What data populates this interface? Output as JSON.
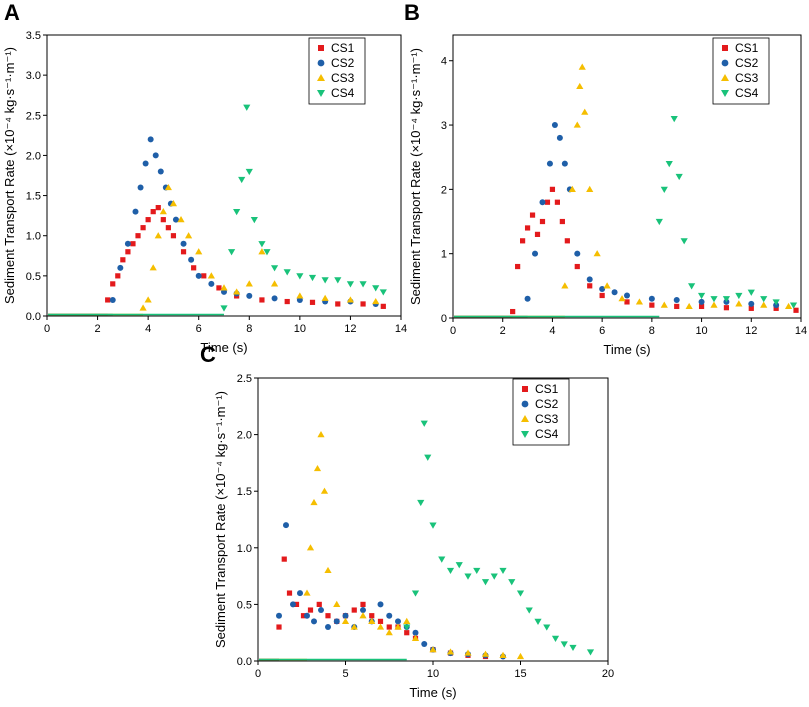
{
  "figure_labels": [
    "A",
    "B",
    "C"
  ],
  "chart_data": [
    {
      "panel": "A",
      "type": "scatter",
      "xlabel": "Time (s)",
      "ylabel": "Sediment Transport Rate (×10⁻⁴ kg·s⁻¹·m⁻¹)",
      "xlim": [
        0,
        14
      ],
      "ylim": [
        0,
        3.5
      ],
      "xticks": [
        0,
        2,
        4,
        6,
        8,
        10,
        12,
        14
      ],
      "xtick_labels": [
        "0",
        "2",
        "4",
        "6",
        "8",
        "10",
        "12",
        "14"
      ],
      "yticks": [
        0,
        0.5,
        1.0,
        1.5,
        2.0,
        2.5,
        3.0,
        3.5
      ],
      "ytick_labels": [
        "0.0",
        "0.5",
        "1.0",
        "1.5",
        "2.0",
        "2.5",
        "3.0",
        "3.5"
      ],
      "legend_position": "top-right",
      "series": [
        {
          "name": "CS1",
          "marker": "square",
          "color": "#e31a1c",
          "x": [
            2.4,
            2.6,
            2.8,
            3.0,
            3.2,
            3.4,
            3.6,
            3.8,
            4.0,
            4.2,
            4.4,
            4.6,
            4.8,
            5.0,
            5.4,
            5.8,
            6.2,
            6.8,
            7.5,
            8.5,
            9.5,
            10.5,
            11.5,
            12.5,
            13.3
          ],
          "y": [
            0.2,
            0.4,
            0.5,
            0.7,
            0.8,
            0.9,
            1.0,
            1.1,
            1.2,
            1.3,
            1.35,
            1.2,
            1.1,
            1.0,
            0.8,
            0.6,
            0.5,
            0.35,
            0.25,
            0.2,
            0.18,
            0.17,
            0.15,
            0.15,
            0.12
          ]
        },
        {
          "name": "CS2",
          "marker": "circle",
          "color": "#1f5fa8",
          "x": [
            2.6,
            2.9,
            3.2,
            3.5,
            3.7,
            3.9,
            4.1,
            4.3,
            4.5,
            4.7,
            4.9,
            5.1,
            5.4,
            5.7,
            6.0,
            6.5,
            7.0,
            7.5,
            8.0,
            9.0,
            10.0,
            11.0,
            12.0,
            13.0
          ],
          "y": [
            0.2,
            0.6,
            0.9,
            1.3,
            1.6,
            1.9,
            2.2,
            2.0,
            1.8,
            1.6,
            1.4,
            1.2,
            0.9,
            0.7,
            0.5,
            0.4,
            0.3,
            0.28,
            0.25,
            0.22,
            0.2,
            0.18,
            0.18,
            0.15
          ]
        },
        {
          "name": "CS3",
          "marker": "triangle-up",
          "color": "#f5be00",
          "x": [
            3.8,
            4.0,
            4.2,
            4.4,
            4.6,
            4.8,
            5.0,
            5.3,
            5.6,
            6.0,
            6.5,
            7.0,
            7.5,
            8.0,
            8.5,
            9.0,
            10.0,
            11.0,
            12.0,
            13.0
          ],
          "y": [
            0.1,
            0.2,
            0.6,
            1.0,
            1.3,
            1.6,
            1.4,
            1.2,
            1.0,
            0.8,
            0.5,
            0.35,
            0.3,
            0.4,
            0.8,
            0.4,
            0.25,
            0.22,
            0.2,
            0.18
          ]
        },
        {
          "name": "CS4",
          "marker": "triangle-down",
          "color": "#19c27a",
          "x": [
            7.0,
            7.3,
            7.5,
            7.7,
            7.9,
            8.0,
            8.2,
            8.5,
            8.7,
            9.0,
            9.5,
            10.0,
            10.5,
            11.0,
            11.5,
            12.0,
            12.5,
            13.0,
            13.3
          ],
          "y": [
            0.1,
            0.8,
            1.3,
            1.7,
            2.6,
            1.8,
            1.2,
            0.9,
            0.8,
            0.6,
            0.55,
            0.5,
            0.48,
            0.45,
            0.45,
            0.4,
            0.4,
            0.35,
            0.3
          ]
        }
      ]
    },
    {
      "panel": "B",
      "type": "scatter",
      "xlabel": "Time (s)",
      "ylabel": "Sediment Transport Rate (×10⁻⁴ kg·s⁻¹·m⁻¹)",
      "xlim": [
        0,
        14
      ],
      "ylim": [
        0,
        4.4
      ],
      "xticks": [
        0,
        2,
        4,
        6,
        8,
        10,
        12,
        14
      ],
      "xtick_labels": [
        "0",
        "2",
        "4",
        "6",
        "8",
        "10",
        "12",
        "14"
      ],
      "yticks": [
        0,
        1,
        2,
        3,
        4
      ],
      "ytick_labels": [
        "0",
        "1",
        "2",
        "3",
        "4"
      ],
      "legend_position": "top-right",
      "series": [
        {
          "name": "CS1",
          "marker": "square",
          "color": "#e31a1c",
          "x": [
            2.4,
            2.6,
            2.8,
            3.0,
            3.2,
            3.4,
            3.6,
            3.8,
            4.0,
            4.2,
            4.4,
            4.6,
            5.0,
            5.5,
            6.0,
            7.0,
            8.0,
            9.0,
            10.0,
            11.0,
            12.0,
            13.0,
            13.8
          ],
          "y": [
            0.1,
            0.8,
            1.2,
            1.4,
            1.6,
            1.3,
            1.5,
            1.8,
            2.0,
            1.8,
            1.5,
            1.2,
            0.8,
            0.5,
            0.35,
            0.25,
            0.2,
            0.18,
            0.18,
            0.16,
            0.15,
            0.15,
            0.12
          ]
        },
        {
          "name": "CS2",
          "marker": "circle",
          "color": "#1f5fa8",
          "x": [
            3.0,
            3.3,
            3.6,
            3.9,
            4.1,
            4.3,
            4.5,
            4.7,
            5.0,
            5.5,
            6.0,
            6.5,
            7.0,
            8.0,
            9.0,
            10.0,
            11.0,
            12.0,
            13.0
          ],
          "y": [
            0.3,
            1.0,
            1.8,
            2.4,
            3.0,
            2.8,
            2.4,
            2.0,
            1.0,
            0.6,
            0.45,
            0.4,
            0.35,
            0.3,
            0.28,
            0.25,
            0.25,
            0.22,
            0.2
          ]
        },
        {
          "name": "CS3",
          "marker": "triangle-up",
          "color": "#f5be00",
          "x": [
            4.5,
            4.8,
            5.0,
            5.1,
            5.2,
            5.3,
            5.5,
            5.8,
            6.2,
            6.8,
            7.5,
            8.5,
            9.5,
            10.5,
            11.5,
            12.5,
            13.5
          ],
          "y": [
            0.5,
            2.0,
            3.0,
            3.6,
            3.9,
            3.2,
            2.0,
            1.0,
            0.5,
            0.3,
            0.25,
            0.2,
            0.18,
            0.2,
            0.22,
            0.2,
            0.18
          ]
        },
        {
          "name": "CS4",
          "marker": "triangle-down",
          "color": "#19c27a",
          "x": [
            8.3,
            8.5,
            8.7,
            8.9,
            9.1,
            9.3,
            9.6,
            10.0,
            10.5,
            11.0,
            11.5,
            12.0,
            12.5,
            13.0,
            13.7
          ],
          "y": [
            1.5,
            2.0,
            2.4,
            3.1,
            2.2,
            1.2,
            0.5,
            0.35,
            0.3,
            0.3,
            0.35,
            0.4,
            0.3,
            0.25,
            0.2
          ]
        }
      ]
    },
    {
      "panel": "C",
      "type": "scatter",
      "xlabel": "Time (s)",
      "ylabel": "Sediment Transport Rate (×10⁻⁴ kg·s⁻¹·m⁻¹)",
      "xlim": [
        0,
        20
      ],
      "ylim": [
        0,
        2.5
      ],
      "xticks": [
        0,
        5,
        10,
        15,
        20
      ],
      "xtick_labels": [
        "0",
        "5",
        "10",
        "15",
        "20"
      ],
      "yticks": [
        0,
        0.5,
        1.0,
        1.5,
        2.0,
        2.5
      ],
      "ytick_labels": [
        "0.0",
        "0.5",
        "1.0",
        "1.5",
        "2.0",
        "2.5"
      ],
      "legend_position": "top-right",
      "series": [
        {
          "name": "CS1",
          "marker": "square",
          "color": "#e31a1c",
          "x": [
            1.2,
            1.5,
            1.8,
            2.2,
            2.6,
            3.0,
            3.5,
            4.0,
            4.5,
            5.0,
            5.5,
            6.0,
            6.5,
            7.0,
            7.5,
            8.0,
            8.5,
            9.0,
            10.0,
            11.0,
            12.0,
            13.0
          ],
          "y": [
            0.3,
            0.9,
            0.6,
            0.5,
            0.4,
            0.45,
            0.5,
            0.4,
            0.35,
            0.4,
            0.45,
            0.5,
            0.4,
            0.35,
            0.3,
            0.3,
            0.25,
            0.2,
            0.1,
            0.07,
            0.05,
            0.04
          ]
        },
        {
          "name": "CS2",
          "marker": "circle",
          "color": "#1f5fa8",
          "x": [
            1.2,
            1.6,
            2.0,
            2.4,
            2.8,
            3.2,
            3.6,
            4.0,
            4.5,
            5.0,
            5.5,
            6.0,
            6.5,
            7.0,
            7.5,
            8.0,
            8.5,
            9.0,
            9.5,
            10.0,
            11.0,
            12.0,
            13.0,
            14.0
          ],
          "y": [
            0.4,
            1.2,
            0.5,
            0.6,
            0.4,
            0.35,
            0.45,
            0.3,
            0.35,
            0.4,
            0.3,
            0.45,
            0.35,
            0.5,
            0.4,
            0.35,
            0.3,
            0.25,
            0.15,
            0.1,
            0.07,
            0.06,
            0.05,
            0.04
          ]
        },
        {
          "name": "CS3",
          "marker": "triangle-up",
          "color": "#f5be00",
          "x": [
            2.8,
            3.0,
            3.2,
            3.4,
            3.6,
            3.8,
            4.0,
            4.5,
            5.0,
            5.5,
            6.0,
            6.5,
            7.0,
            7.5,
            8.0,
            8.5,
            9.0,
            10.0,
            11.0,
            12.0,
            13.0,
            14.0,
            15.0
          ],
          "y": [
            0.6,
            1.0,
            1.4,
            1.7,
            2.0,
            1.5,
            0.8,
            0.5,
            0.35,
            0.3,
            0.4,
            0.35,
            0.3,
            0.25,
            0.3,
            0.35,
            0.2,
            0.1,
            0.08,
            0.07,
            0.06,
            0.05,
            0.04
          ]
        },
        {
          "name": "CS4",
          "marker": "triangle-down",
          "color": "#19c27a",
          "x": [
            8.5,
            9.0,
            9.3,
            9.5,
            9.7,
            10.0,
            10.5,
            11.0,
            11.5,
            12.0,
            12.5,
            13.0,
            13.5,
            14.0,
            14.5,
            15.0,
            15.5,
            16.0,
            16.5,
            17.0,
            17.5,
            18.0,
            19.0
          ],
          "y": [
            0.3,
            0.6,
            1.4,
            2.1,
            1.8,
            1.2,
            0.9,
            0.8,
            0.85,
            0.75,
            0.8,
            0.7,
            0.75,
            0.8,
            0.7,
            0.6,
            0.45,
            0.35,
            0.3,
            0.2,
            0.15,
            0.12,
            0.08
          ]
        }
      ]
    }
  ]
}
